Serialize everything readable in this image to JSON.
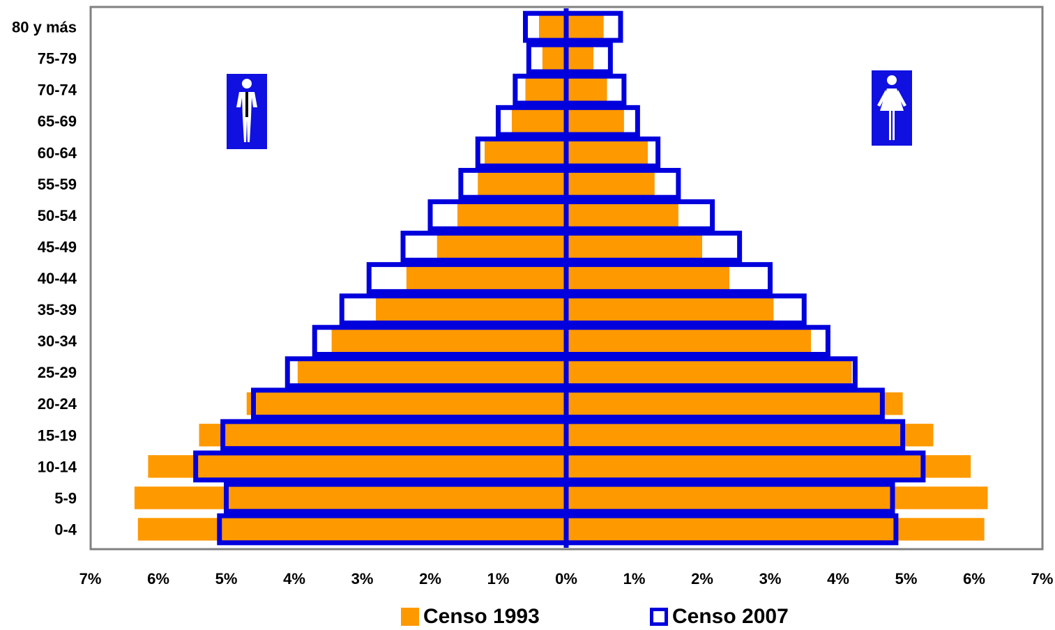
{
  "chart_data": {
    "type": "bar",
    "orientation": "horizontal-population-pyramid",
    "categories": [
      "80 y más",
      "75-79",
      "70-74",
      "65-69",
      "60-64",
      "55-59",
      "50-54",
      "45-49",
      "40-44",
      "35-39",
      "30-34",
      "25-29",
      "20-24",
      "15-19",
      "10-14",
      "5-9",
      "0-4"
    ],
    "x_ticks": [
      "7%",
      "6%",
      "5%",
      "4%",
      "3%",
      "2%",
      "1%",
      "0%",
      "1%",
      "2%",
      "3%",
      "4%",
      "5%",
      "6%",
      "7%"
    ],
    "xlim": [
      -7,
      7
    ],
    "series": [
      {
        "name": "Censo 1993",
        "color": "#ff9900",
        "male": [
          0.4,
          0.35,
          0.6,
          0.8,
          1.2,
          1.3,
          1.6,
          1.9,
          2.35,
          2.8,
          3.45,
          3.95,
          4.7,
          5.4,
          6.15,
          6.35,
          6.3
        ],
        "female": [
          0.55,
          0.4,
          0.6,
          0.85,
          1.2,
          1.3,
          1.65,
          2.0,
          2.4,
          3.05,
          3.6,
          4.2,
          4.95,
          5.4,
          5.95,
          6.2,
          6.15
        ]
      },
      {
        "name": "Censo 2007",
        "color": "#0000dd",
        "male": [
          0.6,
          0.55,
          0.75,
          1.0,
          1.3,
          1.55,
          2.0,
          2.4,
          2.9,
          3.3,
          3.7,
          4.1,
          4.6,
          5.05,
          5.45,
          5.0,
          5.1
        ],
        "female": [
          0.8,
          0.65,
          0.85,
          1.05,
          1.35,
          1.65,
          2.15,
          2.55,
          3.0,
          3.5,
          3.85,
          4.25,
          4.65,
          4.95,
          5.25,
          4.8,
          4.85
        ]
      }
    ],
    "legend_position": "bottom-center",
    "grid": false
  },
  "legend": {
    "items": [
      {
        "label": "Censo 1993"
      },
      {
        "label": "Censo 2007"
      }
    ]
  },
  "icons": {
    "male": "male-icon",
    "female": "female-icon"
  }
}
